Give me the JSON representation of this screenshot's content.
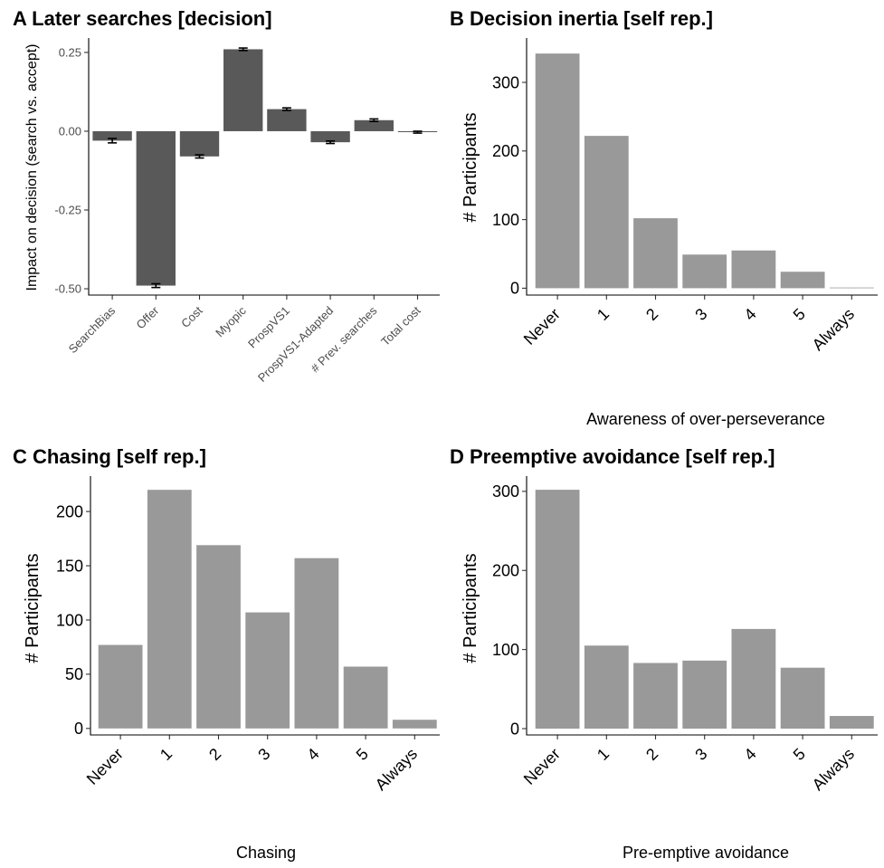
{
  "chart_data": [
    {
      "id": "A",
      "type": "bar",
      "title": "A Later searches [decision]",
      "xlabel": "",
      "ylabel": "Impact on decision (search vs. accept)",
      "categories": [
        "SearchBias",
        "Offer",
        "Cost",
        "Myopic",
        "ProspVS1",
        "ProspVS1-Adapted",
        "# Prev. searches",
        "Total cost"
      ],
      "values": [
        -0.03,
        -0.49,
        -0.08,
        0.26,
        0.07,
        -0.035,
        0.035,
        -0.003
      ],
      "errors": [
        0.007,
        0.006,
        0.005,
        0.004,
        0.004,
        0.004,
        0.004,
        0.003
      ],
      "yticks": [
        0.25,
        0.0,
        -0.25,
        -0.5
      ],
      "ytick_labels": [
        "0.25",
        "0.00",
        "-0.25",
        "-0.50"
      ],
      "ylim": [
        -0.52,
        0.29
      ],
      "bar_color": "#595959",
      "grid": false
    },
    {
      "id": "B",
      "type": "bar",
      "title": "B Decision inertia [self rep.]",
      "xlabel": "Awareness of over-perseverance",
      "ylabel": "# Participants",
      "categories": [
        "Never",
        "1",
        "2",
        "3",
        "4",
        "5",
        "Always"
      ],
      "values": [
        342,
        222,
        102,
        49,
        55,
        24,
        1
      ],
      "yticks": [
        0,
        100,
        200,
        300
      ],
      "ytick_labels": [
        "0",
        "100",
        "200",
        "300"
      ],
      "ylim": [
        -10,
        362
      ],
      "bar_color": "#999999",
      "grid": false
    },
    {
      "id": "C",
      "type": "bar",
      "title": "C Chasing [self rep.]",
      "xlabel": "Chasing",
      "ylabel": "# Participants",
      "categories": [
        "Never",
        "1",
        "2",
        "3",
        "4",
        "5",
        "Always"
      ],
      "values": [
        77,
        220,
        169,
        107,
        157,
        57,
        8
      ],
      "yticks": [
        0,
        50,
        100,
        150,
        200
      ],
      "ytick_labels": [
        "0",
        "50",
        "100",
        "150",
        "200"
      ],
      "ylim": [
        -6,
        231
      ],
      "bar_color": "#999999",
      "grid": false
    },
    {
      "id": "D",
      "type": "bar",
      "title": "D Preemptive avoidance [self rep.]",
      "xlabel": "Pre-emptive avoidance",
      "ylabel": "# Participants",
      "categories": [
        "Never",
        "1",
        "2",
        "3",
        "4",
        "5",
        "Always"
      ],
      "values": [
        302,
        105,
        83,
        86,
        126,
        77,
        16
      ],
      "yticks": [
        0,
        100,
        200,
        300
      ],
      "ytick_labels": [
        "0",
        "100",
        "200",
        "300"
      ],
      "ylim": [
        -8,
        317
      ],
      "bar_color": "#999999",
      "grid": false
    }
  ]
}
